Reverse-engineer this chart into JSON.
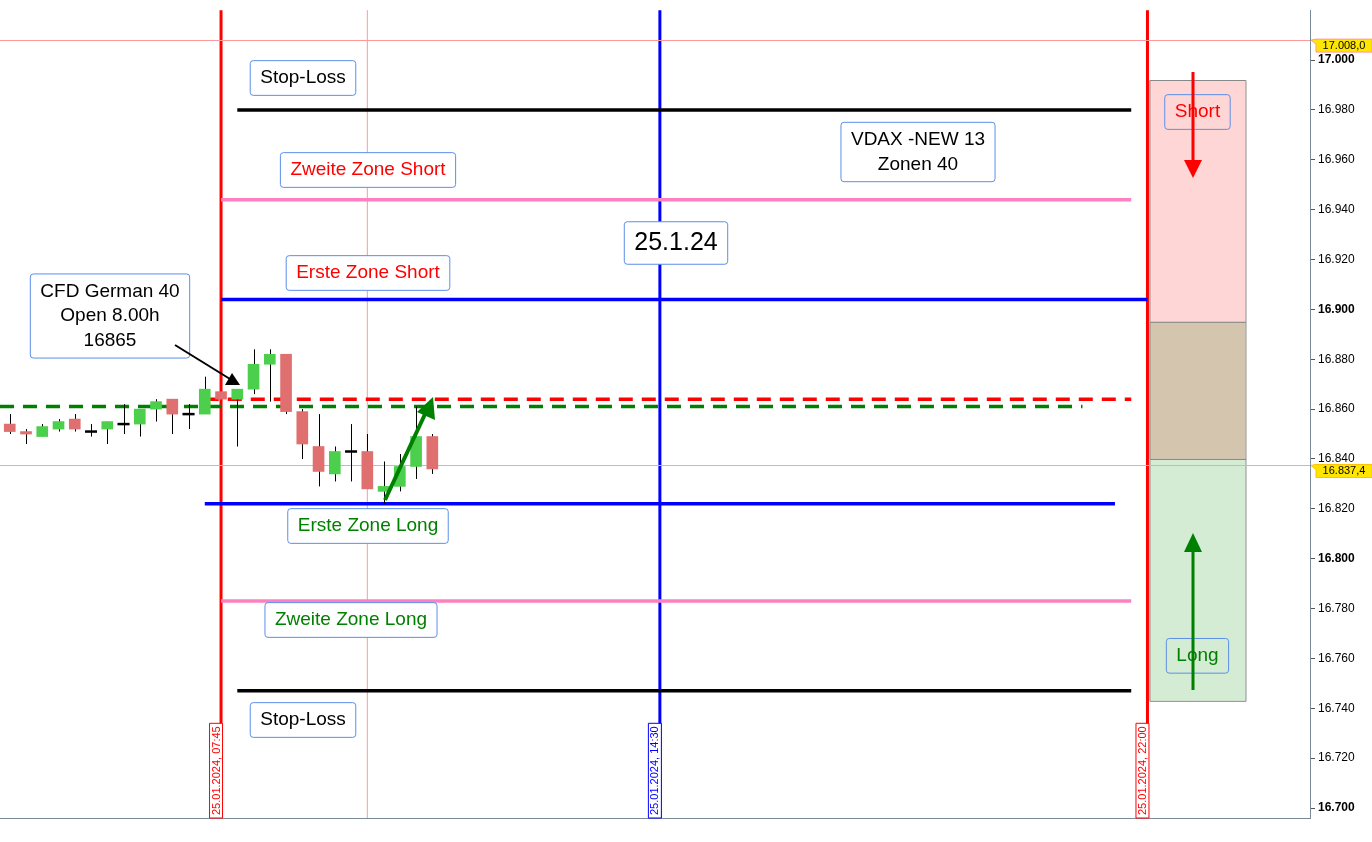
{
  "chart_data": {
    "type": "candlestick",
    "x": [
      "2024-01-25T04:30",
      "2024-01-25T04:45",
      "2024-01-25T05:00",
      "2024-01-25T05:15",
      "2024-01-25T05:30",
      "2024-01-25T05:45",
      "2024-01-25T06:00",
      "2024-01-25T06:15",
      "2024-01-25T06:30",
      "2024-01-25T06:45",
      "2024-01-25T07:00",
      "2024-01-25T07:15",
      "2024-01-25T07:30",
      "2024-01-25T07:45",
      "2024-01-25T08:00",
      "2024-01-25T08:15",
      "2024-01-25T08:30",
      "2024-01-25T08:45",
      "2024-01-25T09:00",
      "2024-01-25T09:15",
      "2024-01-25T09:30",
      "2024-01-25T09:45",
      "2024-01-25T10:00",
      "2024-01-25T10:15",
      "2024-01-25T10:30",
      "2024-01-25T10:45",
      "2024-01-25T11:00"
    ],
    "ohlc": [
      [
        16854,
        16858,
        16850,
        16851
      ],
      [
        16851,
        16852,
        16846,
        16850
      ],
      [
        16849,
        16854,
        16849,
        16853
      ],
      [
        16852,
        16856,
        16851,
        16855
      ],
      [
        16856,
        16858,
        16851,
        16852
      ],
      [
        16851,
        16854,
        16849,
        16851
      ],
      [
        16852,
        16855,
        16846,
        16855
      ],
      [
        16854,
        16862,
        16850,
        16854
      ],
      [
        16854,
        16860,
        16849,
        16860
      ],
      [
        16860,
        16864,
        16855,
        16863
      ],
      [
        16864,
        16864,
        16850,
        16858
      ],
      [
        16858,
        16862,
        16852,
        16858
      ],
      [
        16858,
        16873,
        16858,
        16868
      ],
      [
        16867,
        16867,
        16864,
        16864
      ],
      [
        16864,
        16868,
        16845,
        16868
      ],
      [
        16868,
        16884,
        16866,
        16878
      ],
      [
        16878,
        16884,
        16863,
        16882
      ],
      [
        16882,
        16882,
        16858,
        16859
      ],
      [
        16859,
        16860,
        16840,
        16846
      ],
      [
        16845,
        16858,
        16829,
        16835
      ],
      [
        16834,
        16845,
        16831,
        16843
      ],
      [
        16843,
        16854,
        16831,
        16843
      ],
      [
        16843,
        16850,
        16828,
        16828
      ],
      [
        16827,
        16839,
        16822,
        16829
      ],
      [
        16829,
        16842,
        16827,
        16837
      ],
      [
        16837,
        16861,
        16832,
        16849
      ],
      [
        16849,
        16850,
        16834,
        16836
      ]
    ],
    "colors": [
      "#e07070",
      "#e07070",
      "#4ccf4c",
      "#4ccf4c",
      "#e07070",
      "#000000",
      "#4ccf4c",
      "#000000",
      "#4ccf4c",
      "#4ccf4c",
      "#e07070",
      "#000000",
      "#4ccf4c",
      "#e07070",
      "#4ccf4c",
      "#4ccf4c",
      "#4ccf4c",
      "#e07070",
      "#e07070",
      "#e07070",
      "#4ccf4c",
      "#000000",
      "#e07070",
      "#4ccf4c",
      "#4ccf4c",
      "#4ccf4c",
      "#e07070"
    ],
    "xlim": [
      "2024-01-25T04:21",
      "2024-01-26T00:30"
    ],
    "ylim": [
      16696,
      17020
    ],
    "yticks": [
      {
        "value": 16700,
        "label": "16.700"
      },
      {
        "value": 16720,
        "label": "16.720"
      },
      {
        "value": 16740,
        "label": "16.740"
      },
      {
        "value": 16760,
        "label": "16.760"
      },
      {
        "value": 16780,
        "label": "16.780"
      },
      {
        "value": 16800,
        "label": "16.800"
      },
      {
        "value": 16820,
        "label": "16.820"
      },
      {
        "value": 16840,
        "label": "16.840"
      },
      {
        "value": 16860,
        "label": "16.860"
      },
      {
        "value": 16880,
        "label": "16.880"
      },
      {
        "value": 16900,
        "label": "16.900"
      },
      {
        "value": 16920,
        "label": "16.920"
      },
      {
        "value": 16940,
        "label": "16.940"
      },
      {
        "value": 16960,
        "label": "16.960"
      },
      {
        "value": 16980,
        "label": "16.980"
      },
      {
        "value": 17000,
        "label": "17.000"
      }
    ],
    "xticks": [
      {
        "value": "2024-01-25T07:45",
        "label": "25.01.2024, 07:45"
      },
      {
        "value": "2024-01-25T14:30",
        "label": "25.01.2024, 14:30"
      },
      {
        "value": "2024-01-25T22:00",
        "label": "25.01.2024, 22:00"
      }
    ],
    "series": [
      {
        "type": "line",
        "x": [
          "2024-01-25T08:00",
          "2024-01-25T21:45"
        ],
        "values": [
          16980,
          16980
        ],
        "color": "#000000",
        "line_style": "solid"
      },
      {
        "type": "line",
        "x": [
          "2024-01-25T07:45",
          "2024-01-25T21:45"
        ],
        "values": [
          16944,
          16944
        ],
        "color": "#ff80c0",
        "line_style": "solid"
      },
      {
        "type": "line",
        "x": [
          "2024-01-25T07:45",
          "2024-01-25T22:00"
        ],
        "values": [
          16904,
          16904
        ],
        "color": "#0000ff",
        "line_style": "solid"
      },
      {
        "type": "line",
        "x": [
          "2024-01-25T07:30",
          "2024-01-25T21:45"
        ],
        "values": [
          16864,
          16864
        ],
        "color": "#ff0000",
        "line_style": "dashed"
      },
      {
        "type": "line",
        "x": [
          "2024-01-25T04:21",
          "2024-01-25T21:00"
        ],
        "values": [
          16861,
          16861
        ],
        "color": "#008000",
        "line_style": "dashed"
      },
      {
        "type": "line",
        "x": [
          "2024-01-25T07:30",
          "2024-01-25T21:30"
        ],
        "values": [
          16822,
          16822
        ],
        "color": "#0000ff",
        "line_style": "solid"
      },
      {
        "type": "line",
        "x": [
          "2024-01-25T07:45",
          "2024-01-25T21:45"
        ],
        "values": [
          16783,
          16783
        ],
        "color": "#ff80c0",
        "line_style": "solid"
      },
      {
        "type": "line",
        "x": [
          "2024-01-25T08:00",
          "2024-01-25T21:45"
        ],
        "values": [
          16747,
          16747
        ],
        "color": "#000000",
        "line_style": "solid"
      }
    ],
    "ref_lines": [
      {
        "axis": "x",
        "value": "2024-01-25T07:45",
        "color": "#ff0000"
      },
      {
        "axis": "x",
        "value": "2024-01-25T14:30",
        "color": "#0000ff"
      },
      {
        "axis": "x",
        "value": "2024-01-25T22:00",
        "color": "#ff0000"
      },
      {
        "axis": "x",
        "value": "2024-01-25T10:00",
        "color": "#ff9999"
      },
      {
        "axis": "y",
        "value": 17008,
        "label": "17.008,0",
        "color": "#ff9999"
      },
      {
        "axis": "y",
        "value": 16837.4,
        "label": "16.837,4",
        "color": "#ffc000"
      }
    ],
    "bands": [
      {
        "axis": "y",
        "from": 16895,
        "to": 16992,
        "label": "Short",
        "color": "#ffd6d6"
      },
      {
        "axis": "y",
        "from": 16840,
        "to": 16895,
        "color": "#d4c6ae"
      },
      {
        "axis": "y",
        "from": 16743,
        "to": 16840,
        "label": "Long",
        "color": "#d4ecd4"
      }
    ],
    "annotations": [
      "Stop-Loss",
      "Zweite Zone Short",
      "Erste Zone Short",
      "CFD German 40\nOpen 8.00h\n16865",
      "VDAX -NEW 13\nZonen 40",
      "25.1.24",
      "Erste Zone Long",
      "Zweite Zone Long",
      "Stop-Loss"
    ]
  }
}
